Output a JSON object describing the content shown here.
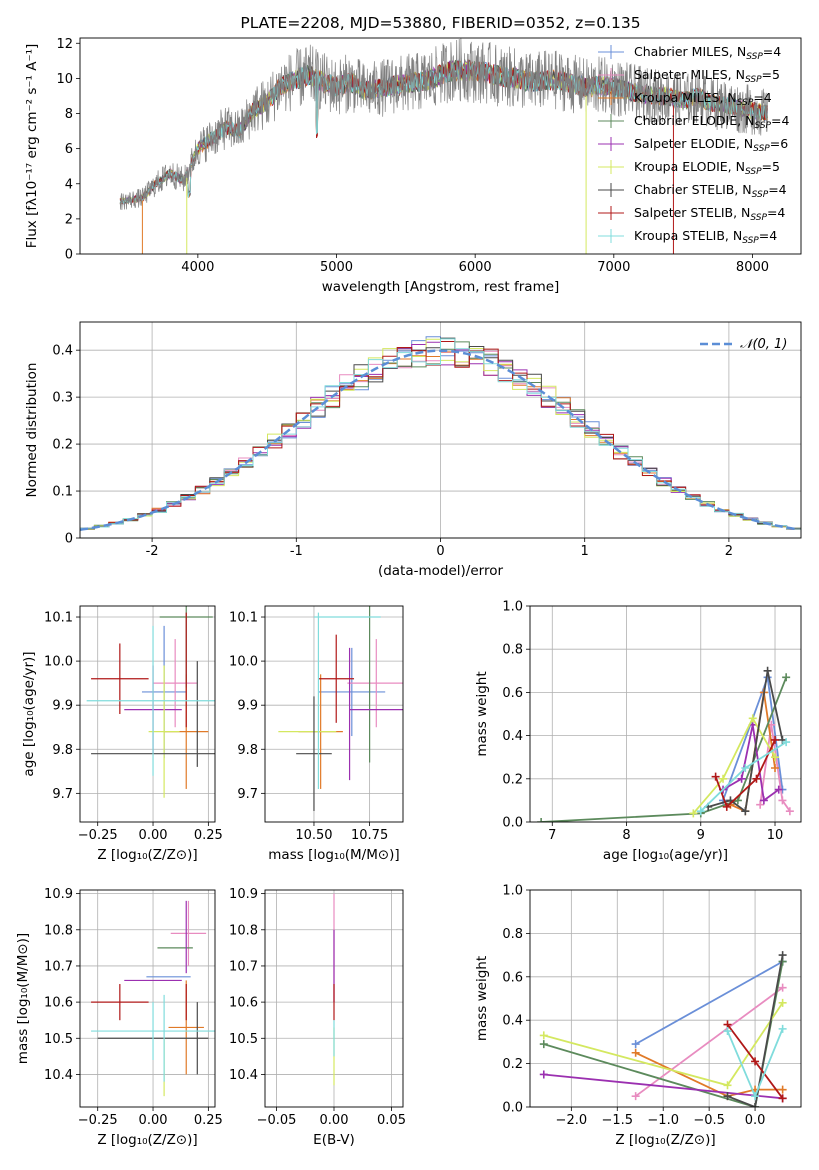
{
  "chart_data": [
    {
      "type": "line",
      "title": "PLATE=2208, MJD=53880, FIBERID=0352, z=0.135",
      "xlabel": "wavelength [Angstrom, rest frame]",
      "ylabel": "Flux [fλ10⁻¹⁷ erg cm⁻² s⁻¹ A⁻¹]",
      "xlim": [
        3150,
        8350
      ],
      "ylim": [
        0,
        12.3
      ],
      "xticks": [
        4000,
        5000,
        6000,
        7000,
        8000
      ],
      "yticks": [
        0,
        2,
        4,
        6,
        8,
        10,
        12
      ],
      "grid": false,
      "legend": "upper-right",
      "series": [
        {
          "name": "Chabrier MILES, N",
          "sub": "SSP",
          "val": "=4",
          "color": "#6a8fd8"
        },
        {
          "name": "Salpeter MILES, N",
          "sub": "SSP",
          "val": "=5",
          "color": "#e88cc0"
        },
        {
          "name": "Kroupa MILES, N",
          "sub": "SSP",
          "val": "=4",
          "color": "#e07a28"
        },
        {
          "name": "Chabrier ELODIE, N",
          "sub": "SSP",
          "val": "=4",
          "color": "#5c8a5c"
        },
        {
          "name": "Salpeter ELODIE, N",
          "sub": "SSP",
          "val": "=6",
          "color": "#9b30b0"
        },
        {
          "name": "Kroupa ELODIE, N",
          "sub": "SSP",
          "val": "=5",
          "color": "#d4e860"
        },
        {
          "name": "Chabrier STELIB, N",
          "sub": "SSP",
          "val": "=4",
          "color": "#4a4a4a"
        },
        {
          "name": "Salpeter STELIB, N",
          "sub": "SSP",
          "val": "=4",
          "color": "#b01818"
        },
        {
          "name": "Kroupa STELIB, N",
          "sub": "SSP",
          "val": "=4",
          "color": "#80dcdc"
        }
      ],
      "data_color": "#808080",
      "continuum": [
        [
          3450,
          3.0
        ],
        [
          3600,
          3.2
        ],
        [
          3700,
          4.0
        ],
        [
          3800,
          4.6
        ],
        [
          3900,
          4.2
        ],
        [
          4000,
          6.0
        ],
        [
          4100,
          6.6
        ],
        [
          4200,
          7.2
        ],
        [
          4300,
          7.0
        ],
        [
          4400,
          8.2
        ],
        [
          4500,
          8.6
        ],
        [
          4600,
          9.6
        ],
        [
          4700,
          9.9
        ],
        [
          4800,
          10.2
        ],
        [
          4900,
          9.8
        ],
        [
          5000,
          9.5
        ],
        [
          5100,
          9.8
        ],
        [
          5200,
          9.3
        ],
        [
          5300,
          9.4
        ],
        [
          5400,
          9.6
        ],
        [
          5500,
          9.7
        ],
        [
          5600,
          9.8
        ],
        [
          5700,
          10.0
        ],
        [
          5800,
          10.4
        ],
        [
          5900,
          10.5
        ],
        [
          6000,
          10.4
        ],
        [
          6100,
          10.3
        ],
        [
          6200,
          10.1
        ],
        [
          6300,
          10.0
        ],
        [
          6400,
          9.8
        ],
        [
          6500,
          9.9
        ],
        [
          6600,
          9.9
        ],
        [
          6700,
          9.7
        ],
        [
          6800,
          9.5
        ],
        [
          6900,
          9.6
        ],
        [
          7000,
          9.5
        ],
        [
          7100,
          9.3
        ],
        [
          7200,
          9.1
        ],
        [
          7300,
          9.0
        ],
        [
          7400,
          9.0
        ],
        [
          7500,
          8.7
        ],
        [
          7600,
          9.0
        ],
        [
          7700,
          8.6
        ],
        [
          7800,
          8.5
        ],
        [
          7900,
          8.3
        ],
        [
          8000,
          8.2
        ],
        [
          8100,
          8.0
        ]
      ]
    },
    {
      "type": "histogram",
      "xlabel": "(data-model)/error",
      "ylabel": "Normed distribution",
      "xlim": [
        -2.5,
        2.5
      ],
      "ylim": [
        0,
        0.46
      ],
      "xticks": [
        -2,
        -1,
        0,
        1,
        2
      ],
      "yticks": [
        0.0,
        0.1,
        0.2,
        0.3,
        0.4
      ],
      "grid": true,
      "legend": "upper-right",
      "legend_label": "𝒩(0, 1)",
      "gauss_color": "#5b8ed6",
      "bin_width": 0.1
    },
    {
      "type": "scatter",
      "xlabel": "Z [log₁₀(Z/Z⊙)]",
      "ylabel": "age  [log₁₀(age/yr)]",
      "xlim": [
        -0.33,
        0.28
      ],
      "ylim": [
        9.635,
        10.125
      ],
      "xticks": [
        -0.25,
        0.0,
        0.25
      ],
      "xticklabels": [
        "−0.25",
        "0.00",
        "0.25"
      ],
      "yticks": [
        9.7,
        9.8,
        9.9,
        10.0,
        10.1
      ],
      "points": [
        {
          "x": 0.05,
          "y": 9.93,
          "xerr": 0.1,
          "yerr": 0.15,
          "color": "#6a8fd8"
        },
        {
          "x": 0.1,
          "y": 9.95,
          "xerr": 0.1,
          "yerr": 0.1,
          "color": "#e88cc0"
        },
        {
          "x": 0.15,
          "y": 9.84,
          "xerr": 0.1,
          "yerr": 0.13,
          "color": "#e07a28"
        },
        {
          "x": 0.15,
          "y": 10.1,
          "xerr": 0.12,
          "yerr": 0.16,
          "color": "#5c8a5c"
        },
        {
          "x": 0.0,
          "y": 9.89,
          "xerr": 0.13,
          "yerr": 0.1,
          "color": "#9b30b0"
        },
        {
          "x": 0.05,
          "y": 9.84,
          "xerr": 0.07,
          "yerr": 0.15,
          "color": "#d4e860"
        },
        {
          "x": 0.0,
          "y": 9.79,
          "xerr": 0.28,
          "yerr": 0.0,
          "color": "#4a4a4a"
        },
        {
          "x": 0.2,
          "y": 9.88,
          "xerr": 0.0,
          "yerr": 0.12,
          "color": "#4a4a4a"
        },
        {
          "x": -0.15,
          "y": 9.96,
          "xerr": 0.13,
          "yerr": 0.08,
          "color": "#b01818"
        },
        {
          "x": 0.15,
          "y": 9.98,
          "xerr": 0.0,
          "yerr": 0.13,
          "color": "#b01818"
        },
        {
          "x": 0.0,
          "y": 9.91,
          "xerr": 0.3,
          "yerr": 0.17,
          "color": "#80dcdc"
        }
      ]
    },
    {
      "type": "scatter",
      "xlabel": "mass [log₁₀(M/M⊙)]",
      "ylabel": "",
      "xlim": [
        10.28,
        10.9
      ],
      "ylim": [
        9.635,
        10.125
      ],
      "xticks": [
        10.5,
        10.75
      ],
      "xticklabels": [
        "10.50",
        "10.75"
      ],
      "yticks": [
        9.7,
        9.8,
        9.9,
        10.0,
        10.1
      ],
      "points": [
        {
          "x": 10.67,
          "y": 9.93,
          "xerr": 0.15,
          "yerr": 0.1,
          "color": "#6a8fd8"
        },
        {
          "x": 10.78,
          "y": 9.95,
          "xerr": 0.13,
          "yerr": 0.1,
          "color": "#e88cc0"
        },
        {
          "x": 10.53,
          "y": 9.84,
          "xerr": 0.1,
          "yerr": 0.13,
          "color": "#e07a28"
        },
        {
          "x": 10.75,
          "y": 10.1,
          "xerr": 0.0,
          "yerr": 0.33,
          "color": "#5c8a5c"
        },
        {
          "x": 10.78,
          "y": 9.89,
          "xerr": 0.12,
          "yerr": 0.0,
          "color": "#9b30b0"
        },
        {
          "x": 10.66,
          "y": 9.88,
          "xerr": 0.0,
          "yerr": 0.15,
          "color": "#9b30b0"
        },
        {
          "x": 10.47,
          "y": 9.84,
          "xerr": 0.13,
          "yerr": 0.0,
          "color": "#d4e860"
        },
        {
          "x": 10.5,
          "y": 9.79,
          "xerr": 0.08,
          "yerr": 0.13,
          "color": "#4a4a4a"
        },
        {
          "x": 10.6,
          "y": 9.96,
          "xerr": 0.08,
          "yerr": 0.1,
          "color": "#b01818"
        },
        {
          "x": 10.65,
          "y": 10.1,
          "xerr": 0.15,
          "yerr": 0.0,
          "color": "#80dcdc"
        },
        {
          "x": 10.52,
          "y": 9.91,
          "xerr": 0.0,
          "yerr": 0.2,
          "color": "#80dcdc"
        }
      ]
    },
    {
      "type": "line",
      "xlabel": "age  [log₁₀(age/yr)]",
      "ylabel": "mass weight",
      "xlim": [
        6.7,
        10.35
      ],
      "ylim": [
        0,
        1.0
      ],
      "xticks": [
        7,
        8,
        9,
        10
      ],
      "yticks": [
        0.0,
        0.2,
        0.4,
        0.6,
        0.8,
        1.0
      ],
      "grid": true,
      "series": [
        {
          "color": "#6a8fd8",
          "x": [
            9.3,
            9.9,
            10.1
          ],
          "y": [
            0.1,
            0.67,
            0.15
          ]
        },
        {
          "color": "#e88cc0",
          "x": [
            9.8,
            9.95,
            10.1,
            10.2
          ],
          "y": [
            0.08,
            0.45,
            0.1,
            0.05
          ]
        },
        {
          "color": "#e07a28",
          "x": [
            9.4,
            9.6,
            9.85,
            10.0
          ],
          "y": [
            0.08,
            0.05,
            0.6,
            0.25
          ]
        },
        {
          "color": "#5c8a5c",
          "x": [
            6.85,
            9.0,
            9.5,
            10.15
          ],
          "y": [
            0.0,
            0.04,
            0.1,
            0.67
          ]
        },
        {
          "color": "#9b30b0",
          "x": [
            9.3,
            9.55,
            9.7,
            9.85,
            10.05
          ],
          "y": [
            0.15,
            0.2,
            0.45,
            0.1,
            0.15
          ]
        },
        {
          "color": "#d4e860",
          "x": [
            8.9,
            9.3,
            9.7,
            10.0
          ],
          "y": [
            0.04,
            0.2,
            0.48,
            0.3
          ]
        },
        {
          "color": "#4a4a4a",
          "x": [
            9.1,
            9.4,
            9.6,
            9.9,
            10.1
          ],
          "y": [
            0.07,
            0.1,
            0.05,
            0.7,
            0.38
          ]
        },
        {
          "color": "#b01818",
          "x": [
            9.2,
            9.35,
            9.75,
            10.0
          ],
          "y": [
            0.21,
            0.07,
            0.2,
            0.38
          ]
        },
        {
          "color": "#80dcdc",
          "x": [
            9.0,
            9.6,
            10.15
          ],
          "y": [
            0.05,
            0.25,
            0.37
          ]
        }
      ]
    },
    {
      "type": "scatter",
      "xlabel": "Z [log₁₀(Z/Z⊙)]",
      "ylabel": "mass [log₁₀(M/M⊙)]",
      "xlim": [
        -0.33,
        0.28
      ],
      "ylim": [
        10.31,
        10.91
      ],
      "xticks": [
        -0.25,
        0.0,
        0.25
      ],
      "xticklabels": [
        "−0.25",
        "0.00",
        "0.25"
      ],
      "yticks": [
        10.4,
        10.5,
        10.6,
        10.7,
        10.8,
        10.9
      ],
      "points": [
        {
          "x": 0.07,
          "y": 10.67,
          "xerr": 0.1,
          "yerr": 0.0,
          "color": "#6a8fd8"
        },
        {
          "x": 0.16,
          "y": 10.79,
          "xerr": 0.08,
          "yerr": 0.09,
          "color": "#e88cc0"
        },
        {
          "x": 0.15,
          "y": 10.53,
          "xerr": 0.08,
          "yerr": 0.13,
          "color": "#e07a28"
        },
        {
          "x": 0.1,
          "y": 10.75,
          "xerr": 0.08,
          "yerr": 0.0,
          "color": "#5c8a5c"
        },
        {
          "x": 0.0,
          "y": 10.66,
          "xerr": 0.13,
          "yerr": 0.0,
          "color": "#9b30b0"
        },
        {
          "x": 0.15,
          "y": 10.78,
          "xerr": 0.0,
          "yerr": 0.1,
          "color": "#9b30b0"
        },
        {
          "x": 0.05,
          "y": 10.42,
          "xerr": 0.0,
          "yerr": 0.08,
          "color": "#d4e860"
        },
        {
          "x": 0.0,
          "y": 10.5,
          "xerr": 0.25,
          "yerr": 0.0,
          "color": "#4a4a4a"
        },
        {
          "x": 0.2,
          "y": 10.5,
          "xerr": 0.0,
          "yerr": 0.1,
          "color": "#4a4a4a"
        },
        {
          "x": -0.15,
          "y": 10.6,
          "xerr": 0.13,
          "yerr": 0.05,
          "color": "#b01818"
        },
        {
          "x": 0.15,
          "y": 10.6,
          "xerr": 0.0,
          "yerr": 0.05,
          "color": "#b01818"
        },
        {
          "x": 0.0,
          "y": 10.52,
          "xerr": 0.28,
          "yerr": 0.08,
          "color": "#80dcdc"
        },
        {
          "x": 0.05,
          "y": 10.5,
          "xerr": 0.0,
          "yerr": 0.12,
          "color": "#80dcdc"
        }
      ]
    },
    {
      "type": "scatter",
      "xlabel": "E(B-V)",
      "ylabel": "",
      "xlim": [
        -0.06,
        0.06
      ],
      "ylim": [
        10.31,
        10.91
      ],
      "xticks": [
        -0.05,
        0.0,
        0.05
      ],
      "xticklabels": [
        "−0.05",
        "0.00",
        "0.05"
      ],
      "yticks": [
        10.4,
        10.5,
        10.6,
        10.7,
        10.8,
        10.9
      ],
      "points": [
        {
          "x": 0.0,
          "y": 10.75,
          "xerr": 0.0,
          "yerr": 0.15,
          "color": "#e88cc0"
        },
        {
          "x": 0.0,
          "y": 10.7,
          "xerr": 0.0,
          "yerr": 0.1,
          "color": "#9b30b0"
        },
        {
          "x": 0.0,
          "y": 10.6,
          "xerr": 0.0,
          "yerr": 0.05,
          "color": "#b01818"
        },
        {
          "x": 0.0,
          "y": 10.45,
          "xerr": 0.0,
          "yerr": 0.08,
          "color": "#d4e860"
        },
        {
          "x": 0.0,
          "y": 10.5,
          "xerr": 0.0,
          "yerr": 0.05,
          "color": "#80dcdc"
        }
      ]
    },
    {
      "type": "line",
      "xlabel": "Z [log₁₀(Z/Z⊙)]",
      "ylabel": "mass weight",
      "xlim": [
        -2.45,
        0.5
      ],
      "ylim": [
        0,
        1.0
      ],
      "xticks": [
        -2.0,
        -1.5,
        -1.0,
        -0.5,
        0.0
      ],
      "xticklabels": [
        "−2.0",
        "−1.5",
        "−1.0",
        "−0.5",
        "0.0"
      ],
      "yticks": [
        0.0,
        0.2,
        0.4,
        0.6,
        0.8,
        1.0
      ],
      "grid": true,
      "series": [
        {
          "color": "#6a8fd8",
          "x": [
            -1.3,
            0.3
          ],
          "y": [
            0.29,
            0.67
          ]
        },
        {
          "color": "#e88cc0",
          "x": [
            -1.3,
            0.3
          ],
          "y": [
            0.05,
            0.55
          ]
        },
        {
          "color": "#e07a28",
          "x": [
            -1.3,
            -0.3,
            0.0,
            0.3
          ],
          "y": [
            0.25,
            0.05,
            0.08,
            0.08
          ]
        },
        {
          "color": "#5c8a5c",
          "x": [
            -2.3,
            0.0,
            0.3
          ],
          "y": [
            0.29,
            0.0,
            0.67
          ]
        },
        {
          "color": "#9b30b0",
          "x": [
            -2.3,
            0.3
          ],
          "y": [
            0.15,
            0.04
          ]
        },
        {
          "color": "#d4e860",
          "x": [
            -2.3,
            -0.3,
            0.3
          ],
          "y": [
            0.33,
            0.1,
            0.48
          ]
        },
        {
          "color": "#4a4a4a",
          "x": [
            -0.3,
            0.0,
            0.3
          ],
          "y": [
            0.05,
            0.0,
            0.7
          ]
        },
        {
          "color": "#b01818",
          "x": [
            -0.3,
            0.0,
            0.3
          ],
          "y": [
            0.38,
            0.21,
            0.04
          ]
        },
        {
          "color": "#80dcdc",
          "x": [
            -0.3,
            0.0,
            0.3
          ],
          "y": [
            0.35,
            0.05,
            0.36
          ]
        }
      ]
    }
  ]
}
